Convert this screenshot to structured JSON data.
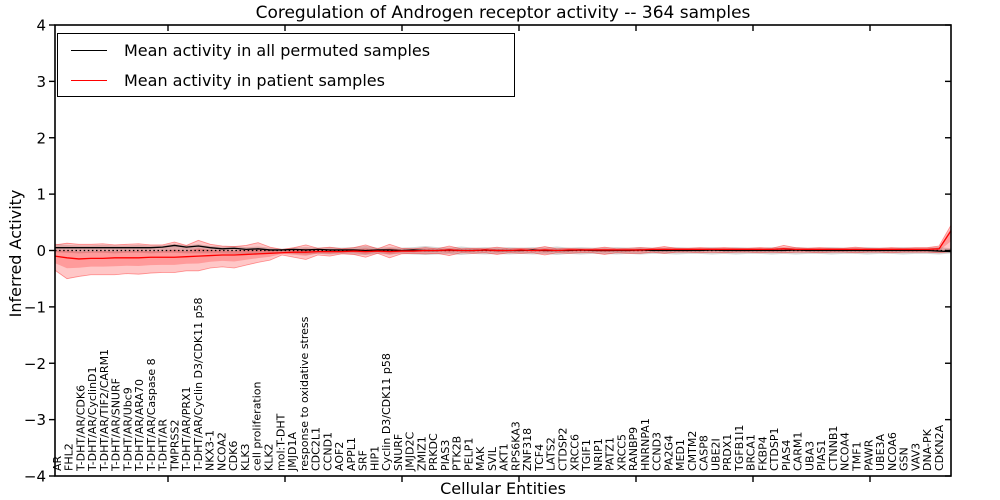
{
  "chart_data": {
    "type": "line",
    "title": "Coregulation of Androgen receptor activity -- 364 samples",
    "xlabel": "Cellular Entities",
    "ylabel": "Inferred Activity",
    "ylim": [
      -4,
      4
    ],
    "grid": false,
    "background": "#ffffff",
    "axis_color": "#000000",
    "ytick_values": [
      4,
      3,
      2,
      1,
      0,
      -1,
      -2,
      -3,
      -4
    ],
    "ytick_labels": [
      "4",
      "3",
      "2",
      "1",
      "0",
      "−1",
      "−2",
      "−3",
      "−4"
    ],
    "legend": {
      "position": "upper-left",
      "items": [
        {
          "label": "Mean activity in all permuted samples",
          "color": "#000000"
        },
        {
          "label": "Mean activity in patient samples",
          "color": "#ff0000"
        }
      ]
    },
    "zero_line": {
      "y": 0,
      "style": "dotted",
      "color": "#000000"
    },
    "categories": [
      "AR",
      "FHL2",
      "T-DHT/AR/CDK6",
      "T-DHT/AR/CyclinD1",
      "T-DHT/AR/TIF2/CARM1",
      "T-DHT/AR/SNURF",
      "T-DHT/AR/Ubc9",
      "T-DHT/AR/ARA70",
      "T-DHT/AR/Caspase 8",
      "T-DHT/AR",
      "TMPRSS2",
      "T-DHT/AR/PRX1",
      "T-DHT/AR/Cyclin D3/CDK11 p58",
      "NKX3-1",
      "NCOA2",
      "CDK6",
      "KLK3",
      "cell proliferation",
      "KLK2",
      "mol:T-DHT",
      "JMJD1A",
      "response to oxidative stress",
      "CDC2L1",
      "CCND1",
      "AOF2",
      "APPL1",
      "SRF",
      "HIP1",
      "Cyclin D3/CDK11 p58",
      "SNURF",
      "JMJD2C",
      "ZMIZ1",
      "PRKDC",
      "PIAS3",
      "PTK2B",
      "PELP1",
      "MAK",
      "SVIL",
      "AKT1",
      "RPS6KA3",
      "ZNF318",
      "TCF4",
      "LATS2",
      "CTDSP2",
      "XRCC6",
      "TGIF1",
      "NRIP1",
      "PATZ1",
      "XRCC5",
      "RANBP9",
      "HNRNPA1",
      "CCND3",
      "PA2G4",
      "MED1",
      "CMTM2",
      "CASP8",
      "UBE2I",
      "PRDX1",
      "TGFB1I1",
      "BRCA1",
      "FKBP4",
      "CTDSP1",
      "PIAS4",
      "CARM1",
      "UBA3",
      "PIAS1",
      "CTNNB1",
      "NCOA4",
      "TMF1",
      "PAWR",
      "UBE3A",
      "NCOA6",
      "GSN",
      "VAV3",
      "DNA-PK",
      "CDKN2A"
    ],
    "series": [
      {
        "name": "Mean activity in all permuted samples",
        "color": "#000000",
        "values": [
          0.05,
          0.05,
          0.05,
          0.05,
          0.05,
          0.05,
          0.05,
          0.05,
          0.05,
          0.06,
          0.09,
          0.06,
          0.08,
          0.05,
          0.03,
          0.04,
          0.02,
          0.03,
          0.01,
          0.01,
          0.02,
          0.01,
          0.02,
          0.01,
          0.01,
          0.01,
          0.0,
          0.01,
          0.01,
          0.0,
          0.01,
          0.0,
          0.0,
          0.01,
          0.0,
          0.0,
          0.01,
          0.0,
          0.0,
          0.0,
          0.01,
          0.0,
          0.0,
          0.0,
          0.01,
          0.0,
          0.0,
          0.0,
          0.0,
          0.01,
          0.0,
          0.0,
          0.0,
          0.0,
          0.0,
          0.01,
          0.0,
          0.0,
          0.0,
          0.0,
          0.0,
          0.0,
          0.01,
          0.0,
          0.0,
          0.0,
          0.0,
          0.0,
          0.0,
          0.0,
          0.0,
          0.0,
          0.0,
          0.0,
          -0.01,
          -0.02
        ]
      },
      {
        "name": "Mean activity in patient samples",
        "color": "#ff0000",
        "values": [
          -0.1,
          -0.13,
          -0.15,
          -0.14,
          -0.14,
          -0.13,
          -0.13,
          -0.13,
          -0.12,
          -0.12,
          -0.12,
          -0.11,
          -0.1,
          -0.09,
          -0.08,
          -0.08,
          -0.07,
          -0.06,
          -0.05,
          -0.04,
          -0.03,
          -0.03,
          -0.02,
          -0.02,
          -0.02,
          -0.01,
          -0.02,
          -0.01,
          -0.02,
          -0.01,
          -0.01,
          0.0,
          0.0,
          0.01,
          0.0,
          0.0,
          0.01,
          0.0,
          0.0,
          0.01,
          0.0,
          0.01,
          0.0,
          0.01,
          0.01,
          0.01,
          0.01,
          0.01,
          0.01,
          0.01,
          0.02,
          0.02,
          0.02,
          0.02,
          0.02,
          0.02,
          0.02,
          0.02,
          0.02,
          0.02,
          0.02,
          0.03,
          0.02,
          0.02,
          0.02,
          0.02,
          0.02,
          0.02,
          0.02,
          0.02,
          0.02,
          0.02,
          0.02,
          0.02,
          0.03,
          0.35
        ]
      }
    ],
    "bands": [
      {
        "name": "Permuted samples range",
        "color": "#777777",
        "alpha": 0.3,
        "top": [
          0.12,
          0.1,
          0.09,
          0.09,
          0.1,
          0.09,
          0.09,
          0.1,
          0.09,
          0.09,
          0.12,
          0.09,
          0.11,
          0.08,
          0.07,
          0.08,
          0.06,
          0.07,
          0.05,
          0.03,
          0.05,
          0.06,
          0.05,
          0.06,
          0.05,
          0.06,
          0.08,
          0.05,
          0.06,
          0.05,
          0.06,
          0.08,
          0.06,
          0.05,
          0.07,
          0.05,
          0.06,
          0.05,
          0.06,
          0.05,
          0.06,
          0.05,
          0.07,
          0.05,
          0.06,
          0.05,
          0.05,
          0.06,
          0.05,
          0.06,
          0.05,
          0.05,
          0.06,
          0.05,
          0.05,
          0.06,
          0.05,
          0.06,
          0.05,
          0.05,
          0.06,
          0.05,
          0.06,
          0.05,
          0.05,
          0.06,
          0.05,
          0.05,
          0.06,
          0.05,
          0.05,
          0.06,
          0.05,
          0.05,
          0.06,
          0.04
        ],
        "bottom": [
          -0.03,
          -0.04,
          -0.05,
          -0.04,
          -0.04,
          -0.05,
          -0.04,
          -0.04,
          -0.05,
          -0.04,
          -0.04,
          -0.05,
          -0.05,
          -0.05,
          -0.05,
          -0.06,
          -0.06,
          -0.06,
          -0.06,
          -0.04,
          -0.06,
          -0.07,
          -0.06,
          -0.07,
          -0.06,
          -0.07,
          -0.08,
          -0.06,
          -0.07,
          -0.06,
          -0.07,
          -0.08,
          -0.07,
          -0.06,
          -0.08,
          -0.06,
          -0.07,
          -0.06,
          -0.07,
          -0.06,
          -0.07,
          -0.06,
          -0.08,
          -0.06,
          -0.07,
          -0.06,
          -0.06,
          -0.07,
          -0.06,
          -0.07,
          -0.06,
          -0.06,
          -0.07,
          -0.06,
          -0.06,
          -0.07,
          -0.06,
          -0.07,
          -0.06,
          -0.06,
          -0.07,
          -0.06,
          -0.07,
          -0.06,
          -0.06,
          -0.07,
          -0.06,
          -0.06,
          -0.07,
          -0.06,
          -0.06,
          -0.07,
          -0.06,
          -0.06,
          -0.07,
          -0.05
        ]
      },
      {
        "name": "Patient samples range",
        "color": "#ff0000",
        "alpha": 0.22,
        "top": [
          0.1,
          0.13,
          0.11,
          0.11,
          0.12,
          0.1,
          0.11,
          0.12,
          0.1,
          0.1,
          0.15,
          0.09,
          0.18,
          0.11,
          0.08,
          0.07,
          0.09,
          0.14,
          0.06,
          0.02,
          0.05,
          0.1,
          0.04,
          0.06,
          0.03,
          0.05,
          0.1,
          0.03,
          0.11,
          0.04,
          0.03,
          0.05,
          0.03,
          0.08,
          0.03,
          0.04,
          0.03,
          0.06,
          0.03,
          0.04,
          0.03,
          0.07,
          0.03,
          0.04,
          0.03,
          0.03,
          0.06,
          0.03,
          0.04,
          0.05,
          0.04,
          0.07,
          0.04,
          0.04,
          0.05,
          0.04,
          0.05,
          0.04,
          0.04,
          0.05,
          0.04,
          0.09,
          0.05,
          0.04,
          0.05,
          0.04,
          0.04,
          0.06,
          0.04,
          0.04,
          0.05,
          0.04,
          0.05,
          0.05,
          0.08,
          0.45
        ],
        "bottom": [
          -0.35,
          -0.5,
          -0.46,
          -0.43,
          -0.43,
          -0.43,
          -0.41,
          -0.42,
          -0.4,
          -0.39,
          -0.39,
          -0.36,
          -0.36,
          -0.31,
          -0.29,
          -0.31,
          -0.26,
          -0.21,
          -0.17,
          -0.08,
          -0.12,
          -0.16,
          -0.08,
          -0.1,
          -0.06,
          -0.07,
          -0.12,
          -0.05,
          -0.13,
          -0.06,
          -0.05,
          -0.06,
          -0.05,
          -0.09,
          -0.04,
          -0.05,
          -0.04,
          -0.07,
          -0.04,
          -0.05,
          -0.04,
          -0.08,
          -0.04,
          -0.05,
          -0.04,
          -0.04,
          -0.07,
          -0.04,
          -0.05,
          -0.05,
          -0.03,
          -0.05,
          -0.03,
          -0.03,
          -0.04,
          -0.03,
          -0.04,
          -0.03,
          -0.03,
          -0.04,
          -0.03,
          -0.04,
          -0.03,
          -0.03,
          -0.04,
          -0.03,
          -0.03,
          -0.04,
          -0.03,
          -0.03,
          -0.04,
          -0.03,
          -0.03,
          -0.03,
          -0.04,
          -0.02
        ]
      }
    ]
  }
}
